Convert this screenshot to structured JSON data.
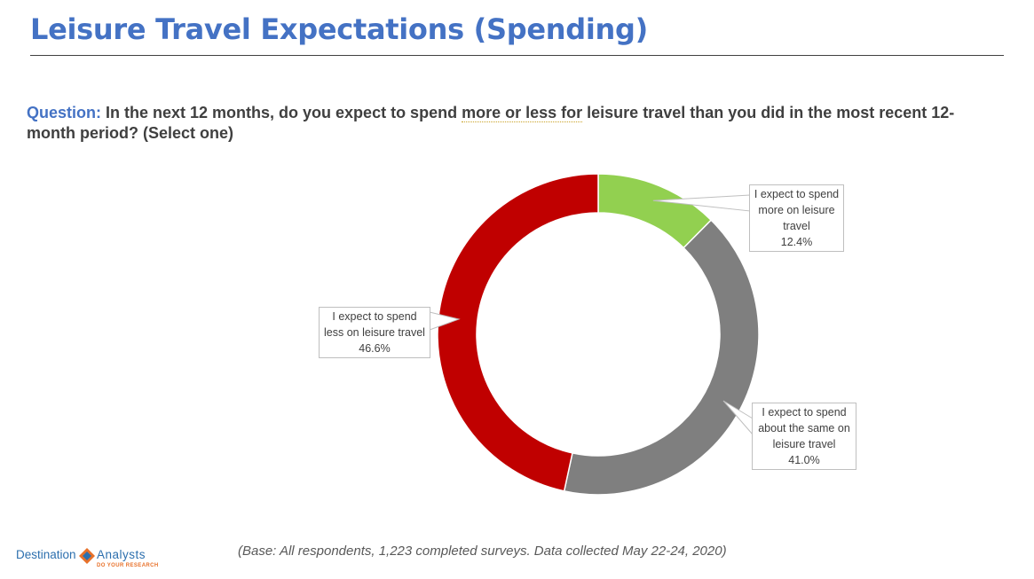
{
  "title": "Leisure Travel Expectations (Spending)",
  "question": {
    "label": "Question:",
    "text_before": "In the next 12 months, do you expect to spend",
    "emphasis": "more or less for",
    "text_after": "leisure travel than you did in the most recent 12-month period? (Select one)"
  },
  "chart_data": {
    "type": "pie",
    "style": "donut",
    "start": "top, clockwise",
    "labels_shown_as": "callouts",
    "slices": [
      {
        "label_lines": [
          "I expect to spend",
          "more on leisure",
          "travel"
        ],
        "value": 12.4,
        "value_text": "12.4%",
        "color": "#92d050"
      },
      {
        "label_lines": [
          "I expect to spend",
          "about the same on",
          "leisure travel"
        ],
        "value": 41.0,
        "value_text": "41.0%",
        "color": "#7f7f7f"
      },
      {
        "label_lines": [
          "I expect to spend",
          "less on leisure travel"
        ],
        "value": 46.6,
        "value_text": "46.6%",
        "color": "#c00000"
      }
    ]
  },
  "footnote": "(Base: All respondents, 1,223 completed surveys. Data collected May 22-24, 2020)",
  "logo": {
    "word1": "Destination",
    "word2": "Analysts",
    "tagline": "DO YOUR RESEARCH",
    "colors": {
      "blue": "#2c6fae",
      "orange": "#e8712a"
    }
  }
}
